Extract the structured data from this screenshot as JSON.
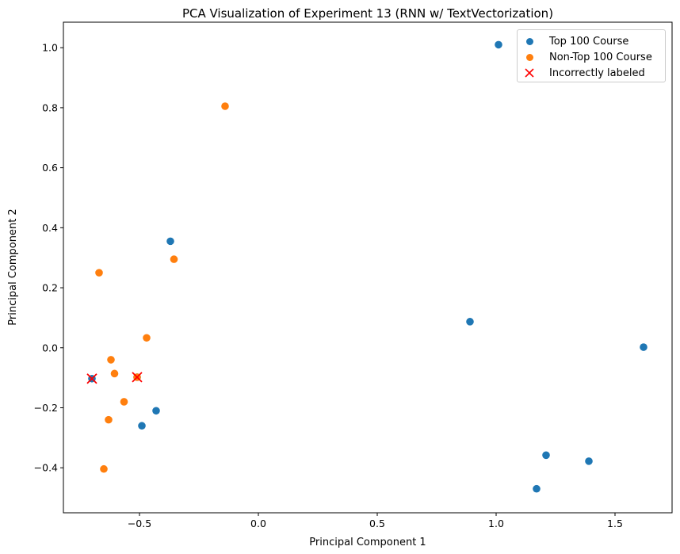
{
  "chart_data": {
    "type": "scatter",
    "title": "PCA Visualization of Experiment 13 (RNN w/ TextVectorization)",
    "xlabel": "Principal Component 1",
    "ylabel": "Principal Component 2",
    "xlim": [
      -0.82,
      1.74
    ],
    "ylim": [
      -0.55,
      1.085
    ],
    "xticks": [
      -0.5,
      0.0,
      0.5,
      1.0,
      1.5
    ],
    "xtick_labels": [
      "−0.5",
      "0.0",
      "0.5",
      "1.0",
      "1.5"
    ],
    "yticks": [
      -0.4,
      -0.2,
      0.0,
      0.2,
      0.4,
      0.6,
      0.8,
      1.0
    ],
    "ytick_labels": [
      "−0.4",
      "−0.2",
      "0.0",
      "0.2",
      "0.4",
      "0.6",
      "0.8",
      "1.0"
    ],
    "grid": false,
    "legend_position": "top-right",
    "series": [
      {
        "name": "Top 100 Course",
        "color": "#1f77b4",
        "marker": "circle",
        "points": [
          [
            1.01,
            1.01
          ],
          [
            -0.37,
            0.355
          ],
          [
            0.89,
            0.087
          ],
          [
            1.62,
            0.002
          ],
          [
            -0.7,
            -0.103
          ],
          [
            -0.51,
            -0.098
          ],
          [
            -0.43,
            -0.21
          ],
          [
            -0.49,
            -0.26
          ],
          [
            1.21,
            -0.358
          ],
          [
            1.39,
            -0.378
          ],
          [
            1.17,
            -0.47
          ]
        ]
      },
      {
        "name": "Non-Top 100 Course",
        "color": "#ff7f0e",
        "marker": "circle",
        "points": [
          [
            -0.14,
            0.805
          ],
          [
            -0.355,
            0.295
          ],
          [
            -0.67,
            0.25
          ],
          [
            -0.47,
            0.033
          ],
          [
            -0.62,
            -0.04
          ],
          [
            -0.605,
            -0.086
          ],
          [
            -0.565,
            -0.18
          ],
          [
            -0.63,
            -0.24
          ],
          [
            -0.65,
            -0.404
          ],
          [
            -0.51,
            -0.098
          ]
        ]
      },
      {
        "name": "Incorrectly labeled",
        "color": "#ff0000",
        "marker": "x",
        "points": [
          [
            -0.7,
            -0.103
          ],
          [
            -0.51,
            -0.098
          ]
        ]
      }
    ]
  }
}
